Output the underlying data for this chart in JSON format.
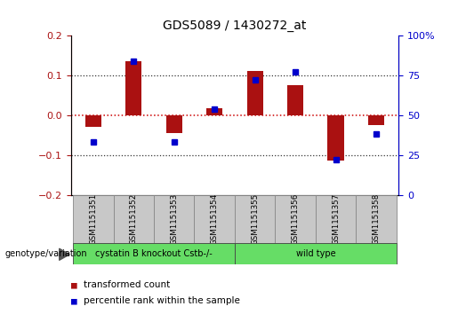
{
  "title": "GDS5089 / 1430272_at",
  "samples": [
    "GSM1151351",
    "GSM1151352",
    "GSM1151353",
    "GSM1151354",
    "GSM1151355",
    "GSM1151356",
    "GSM1151357",
    "GSM1151358"
  ],
  "red_values": [
    -0.03,
    0.135,
    -0.045,
    0.018,
    0.11,
    0.075,
    -0.115,
    -0.025
  ],
  "blue_values": [
    33,
    84,
    33,
    54,
    72,
    77,
    22,
    38
  ],
  "group1_label": "cystatin B knockout Cstb-/-",
  "group2_label": "wild type",
  "group1_count": 4,
  "group2_count": 4,
  "genotype_label": "genotype/variation",
  "legend_red": "transformed count",
  "legend_blue": "percentile rank within the sample",
  "left_ylim": [
    -0.2,
    0.2
  ],
  "right_ylim": [
    0,
    100
  ],
  "left_yticks": [
    -0.2,
    -0.1,
    0.0,
    0.1,
    0.2
  ],
  "right_yticks": [
    0,
    25,
    50,
    75,
    100
  ],
  "right_yticklabels": [
    "0",
    "25",
    "50",
    "75",
    "100%"
  ],
  "red_color": "#AA1111",
  "blue_color": "#0000CC",
  "hline_red_color": "#CC0000",
  "dotline_color": "#333333",
  "group_fill_color": "#66DD66",
  "box_fill_color": "#C8C8C8",
  "box_edge_color": "#888888",
  "group_edge_color": "#444444"
}
